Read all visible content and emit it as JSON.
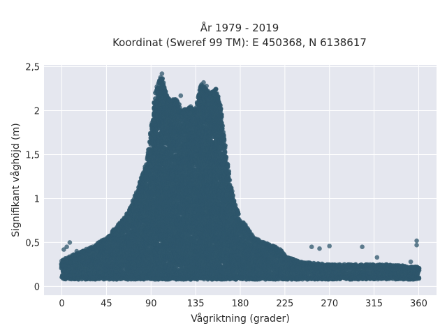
{
  "chart_data": {
    "type": "scatter",
    "title_line1": "År 1979 - 2019",
    "title_line2": "Koordinat (Sweref 99 TM): E 450368, N 6138617",
    "xlabel": "Vågriktning (grader)",
    "ylabel": "Signifikant våghöjd (m)",
    "xlim": [
      -18,
      378
    ],
    "ylim": [
      -0.1,
      2.52
    ],
    "x_ticks": [
      0,
      45,
      90,
      135,
      180,
      225,
      270,
      315,
      360
    ],
    "x_tick_labels": [
      "0",
      "45",
      "90",
      "135",
      "180",
      "225",
      "270",
      "315",
      "360"
    ],
    "y_ticks": [
      0,
      0.5,
      1,
      1.5,
      2,
      2.5
    ],
    "y_tick_labels": [
      "0",
      "0,5",
      "1",
      "1,5",
      "2",
      "2,5"
    ],
    "grid": true,
    "background_color": "#e5e7ef",
    "marker_color": "#2e566b",
    "upper_envelope": {
      "x": [
        0,
        15,
        30,
        45,
        55,
        65,
        75,
        85,
        90,
        95,
        100,
        105,
        110,
        115,
        120,
        125,
        130,
        135,
        140,
        145,
        150,
        155,
        160,
        165,
        170,
        175,
        180,
        185,
        190,
        195,
        200,
        210,
        220,
        225,
        240,
        270,
        300,
        330,
        360
      ],
      "y": [
        0.3,
        0.38,
        0.45,
        0.55,
        0.68,
        0.8,
        1.05,
        1.4,
        1.75,
        2.25,
        2.4,
        2.2,
        2.1,
        2.15,
        2.0,
        2.02,
        2.05,
        2.0,
        2.3,
        2.25,
        2.2,
        2.25,
        2.05,
        1.55,
        1.15,
        0.95,
        0.75,
        0.7,
        0.62,
        0.55,
        0.52,
        0.48,
        0.42,
        0.35,
        0.28,
        0.25,
        0.25,
        0.25,
        0.22
      ]
    },
    "lower_envelope": {
      "x": [
        0,
        360
      ],
      "y": [
        0.1,
        0.1
      ]
    },
    "outliers": [
      {
        "x": 2,
        "y": 0.42
      },
      {
        "x": 5,
        "y": 0.45
      },
      {
        "x": 8,
        "y": 0.5
      },
      {
        "x": 15,
        "y": 0.4
      },
      {
        "x": 252,
        "y": 0.45
      },
      {
        "x": 260,
        "y": 0.43
      },
      {
        "x": 270,
        "y": 0.46
      },
      {
        "x": 303,
        "y": 0.45
      },
      {
        "x": 318,
        "y": 0.33
      },
      {
        "x": 352,
        "y": 0.28
      },
      {
        "x": 358,
        "y": 0.52
      },
      {
        "x": 358,
        "y": 0.47
      },
      {
        "x": 101,
        "y": 2.42
      },
      {
        "x": 143,
        "y": 2.32
      },
      {
        "x": 146,
        "y": 2.28
      },
      {
        "x": 120,
        "y": 2.17
      }
    ]
  }
}
